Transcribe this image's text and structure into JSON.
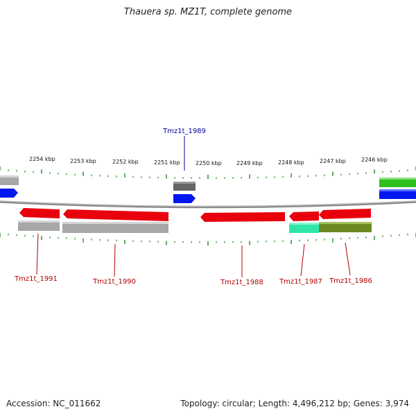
{
  "title": "Thauera sp. MZ1T, complete genome",
  "footer": {
    "accession": "Accession: NC_011662",
    "topology": "Topology: circular; Length: 4,496,212 bp; Genes: 3,974"
  },
  "scale_labels": [
    "2254 kbp",
    "2253 kbp",
    "2252 kbp",
    "2251 kbp",
    "2250 kbp",
    "2249 kbp",
    "2248 kbp",
    "2247 kbp",
    "2246 kbp"
  ],
  "gene_labels": {
    "upper": [
      "Tmz1t_1989"
    ],
    "lower": [
      "Tmz1t_1991",
      "Tmz1t_1990",
      "Tmz1t_1988",
      "Tmz1t_1987",
      "Tmz1t_1986"
    ]
  },
  "colors": {
    "red": "#e8000c",
    "blue": "#0017ef",
    "green": "#2fbf1e",
    "grey": "#a7a7a7",
    "dark_grey": "#666666",
    "teal": "#2fe6a8",
    "olive": "#6b8a22",
    "tick": "#1f8a1f",
    "backbone": "#8a8a8a",
    "label_red": "#b00000",
    "label_blue": "#00009a"
  }
}
